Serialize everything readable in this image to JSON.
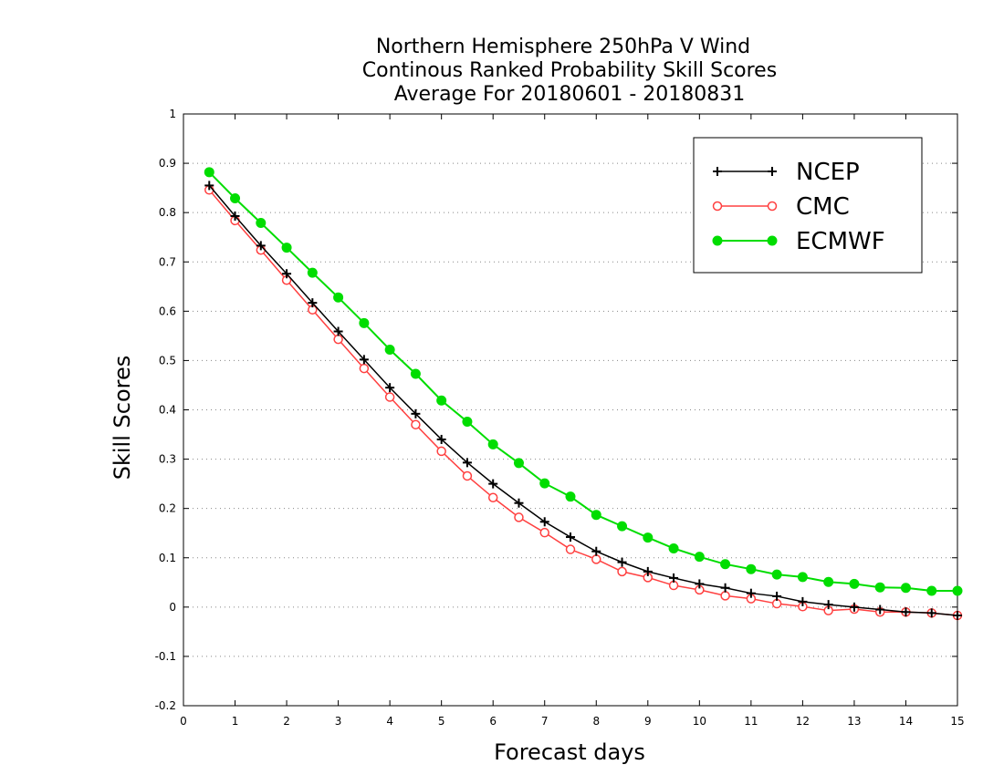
{
  "chart_data": {
    "type": "line",
    "title": [
      "Northern Hemisphere 250hPa V Wind",
      "Continous Ranked Probability Skill Scores",
      "Average For 20180601 - 20180831"
    ],
    "xlabel": "Forecast days",
    "ylabel": "Skill Scores",
    "xlim": [
      0,
      15
    ],
    "ylim": [
      -0.2,
      1
    ],
    "x_ticks": [
      "0",
      "1",
      "2",
      "3",
      "4",
      "5",
      "6",
      "7",
      "8",
      "9",
      "10",
      "11",
      "12",
      "13",
      "14",
      "15"
    ],
    "y_ticks": [
      "1",
      "0.9",
      "0.8",
      "0.7",
      "0.6",
      "0.5",
      "0.4",
      "0.3",
      "0.2",
      "0.1",
      "0",
      "-0.1",
      "-0.2"
    ],
    "grid": "horizontal dotted",
    "legend_position": "top-right",
    "x": [
      0.5,
      1,
      1.5,
      2,
      2.5,
      3,
      3.5,
      4,
      4.5,
      5,
      5.5,
      6,
      6.5,
      7,
      7.5,
      8,
      8.5,
      9,
      9.5,
      10,
      10.5,
      11,
      11.5,
      12,
      12.5,
      13,
      13.5,
      14,
      14.5,
      15
    ],
    "series": [
      {
        "name": "NCEP",
        "color": "#000000",
        "marker": "plus",
        "values": [
          0.855,
          0.793,
          0.733,
          0.676,
          0.617,
          0.559,
          0.502,
          0.445,
          0.392,
          0.34,
          0.293,
          0.25,
          0.211,
          0.173,
          0.142,
          0.113,
          0.091,
          0.072,
          0.059,
          0.047,
          0.039,
          0.028,
          0.022,
          0.011,
          0.005,
          0.0,
          -0.005,
          -0.01,
          -0.012,
          -0.017
        ]
      },
      {
        "name": "CMC",
        "color": "#ff4040",
        "marker": "open-circle",
        "values": [
          0.846,
          0.784,
          0.724,
          0.663,
          0.603,
          0.543,
          0.484,
          0.426,
          0.37,
          0.316,
          0.266,
          0.222,
          0.182,
          0.151,
          0.117,
          0.097,
          0.072,
          0.06,
          0.044,
          0.035,
          0.023,
          0.017,
          0.007,
          0.001,
          -0.007,
          -0.004,
          -0.01,
          -0.01,
          -0.012,
          -0.017
        ]
      },
      {
        "name": "ECMWF",
        "color": "#00dd00",
        "marker": "filled-circle",
        "values": [
          0.882,
          0.829,
          0.779,
          0.729,
          0.678,
          0.628,
          0.576,
          0.522,
          0.473,
          0.419,
          0.376,
          0.33,
          0.292,
          0.251,
          0.224,
          0.187,
          0.164,
          0.141,
          0.119,
          0.102,
          0.087,
          0.077,
          0.066,
          0.061,
          0.051,
          0.047,
          0.04,
          0.039,
          0.033,
          0.033
        ]
      }
    ]
  }
}
